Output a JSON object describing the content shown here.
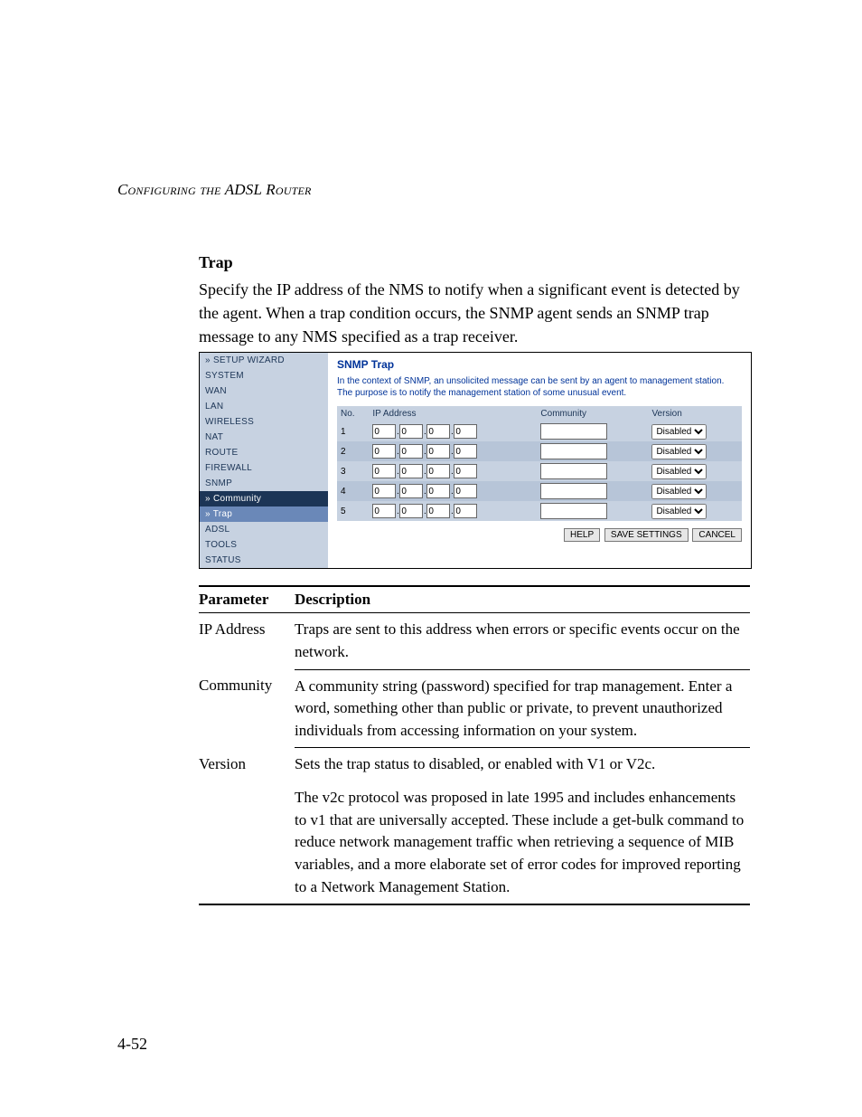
{
  "header": {
    "running_head": "Configuring the ADSL Router"
  },
  "section": {
    "title": "Trap",
    "para": "Specify the IP address of the NMS to notify when a significant event is detected by the agent. When a trap condition occurs, the SNMP agent sends an SNMP trap message to any NMS specified as a trap receiver."
  },
  "ui": {
    "colors": {
      "nav_bg": "#c7d2e1",
      "nav_text": "#1c3556",
      "sub_bg": "#1c3556",
      "sel_bg": "#6a88b8",
      "pane_text": "#003399"
    },
    "nav": [
      {
        "label": "» SETUP WIZARD",
        "kind": "plain"
      },
      {
        "label": "SYSTEM",
        "kind": "plain"
      },
      {
        "label": "WAN",
        "kind": "plain"
      },
      {
        "label": "LAN",
        "kind": "plain"
      },
      {
        "label": "WIRELESS",
        "kind": "plain"
      },
      {
        "label": "NAT",
        "kind": "plain"
      },
      {
        "label": "ROUTE",
        "kind": "plain"
      },
      {
        "label": "FIREWALL",
        "kind": "plain"
      },
      {
        "label": "SNMP",
        "kind": "plain"
      },
      {
        "label": "» Community",
        "kind": "sub"
      },
      {
        "label": "» Trap",
        "kind": "sel"
      },
      {
        "label": "ADSL",
        "kind": "plain"
      },
      {
        "label": "TOOLS",
        "kind": "plain"
      },
      {
        "label": "STATUS",
        "kind": "plain"
      }
    ],
    "pane": {
      "title": "SNMP Trap",
      "desc": "In the context of SNMP, an unsolicited message can be sent by an agent to management station. The purpose is to notify the management station of some unusual event.",
      "columns": {
        "no": "No.",
        "ip": "IP Address",
        "community": "Community",
        "version": "Version"
      },
      "rows": [
        {
          "no": "1",
          "ip": [
            "0",
            "0",
            "0",
            "0"
          ],
          "community": "",
          "version": "Disabled"
        },
        {
          "no": "2",
          "ip": [
            "0",
            "0",
            "0",
            "0"
          ],
          "community": "",
          "version": "Disabled"
        },
        {
          "no": "3",
          "ip": [
            "0",
            "0",
            "0",
            "0"
          ],
          "community": "",
          "version": "Disabled"
        },
        {
          "no": "4",
          "ip": [
            "0",
            "0",
            "0",
            "0"
          ],
          "community": "",
          "version": "Disabled"
        },
        {
          "no": "5",
          "ip": [
            "0",
            "0",
            "0",
            "0"
          ],
          "community": "",
          "version": "Disabled"
        }
      ],
      "buttons": {
        "help": "HELP",
        "save": "SAVE SETTINGS",
        "cancel": "CANCEL"
      }
    }
  },
  "param_table": {
    "headers": {
      "param": "Parameter",
      "desc": "Description"
    },
    "rows": [
      {
        "param": "IP Address",
        "desc": "Traps are sent to this address when errors or specific events occur on the network."
      },
      {
        "param": "Community",
        "desc": "A community string (password) specified for trap management. Enter a word, something other than public or private, to prevent unauthorized individuals from accessing information on your system."
      },
      {
        "param": "Version",
        "desc": "Sets the trap status to disabled, or enabled with V1 or V2c."
      },
      {
        "param": "",
        "desc": "The v2c protocol was proposed in late 1995 and includes enhancements to v1 that are universally accepted. These include a get-bulk command to reduce network management traffic when retrieving a sequence of MIB variables, and a more elaborate set of error codes for improved reporting to a Network Management Station."
      }
    ]
  },
  "page_number": "4-52"
}
